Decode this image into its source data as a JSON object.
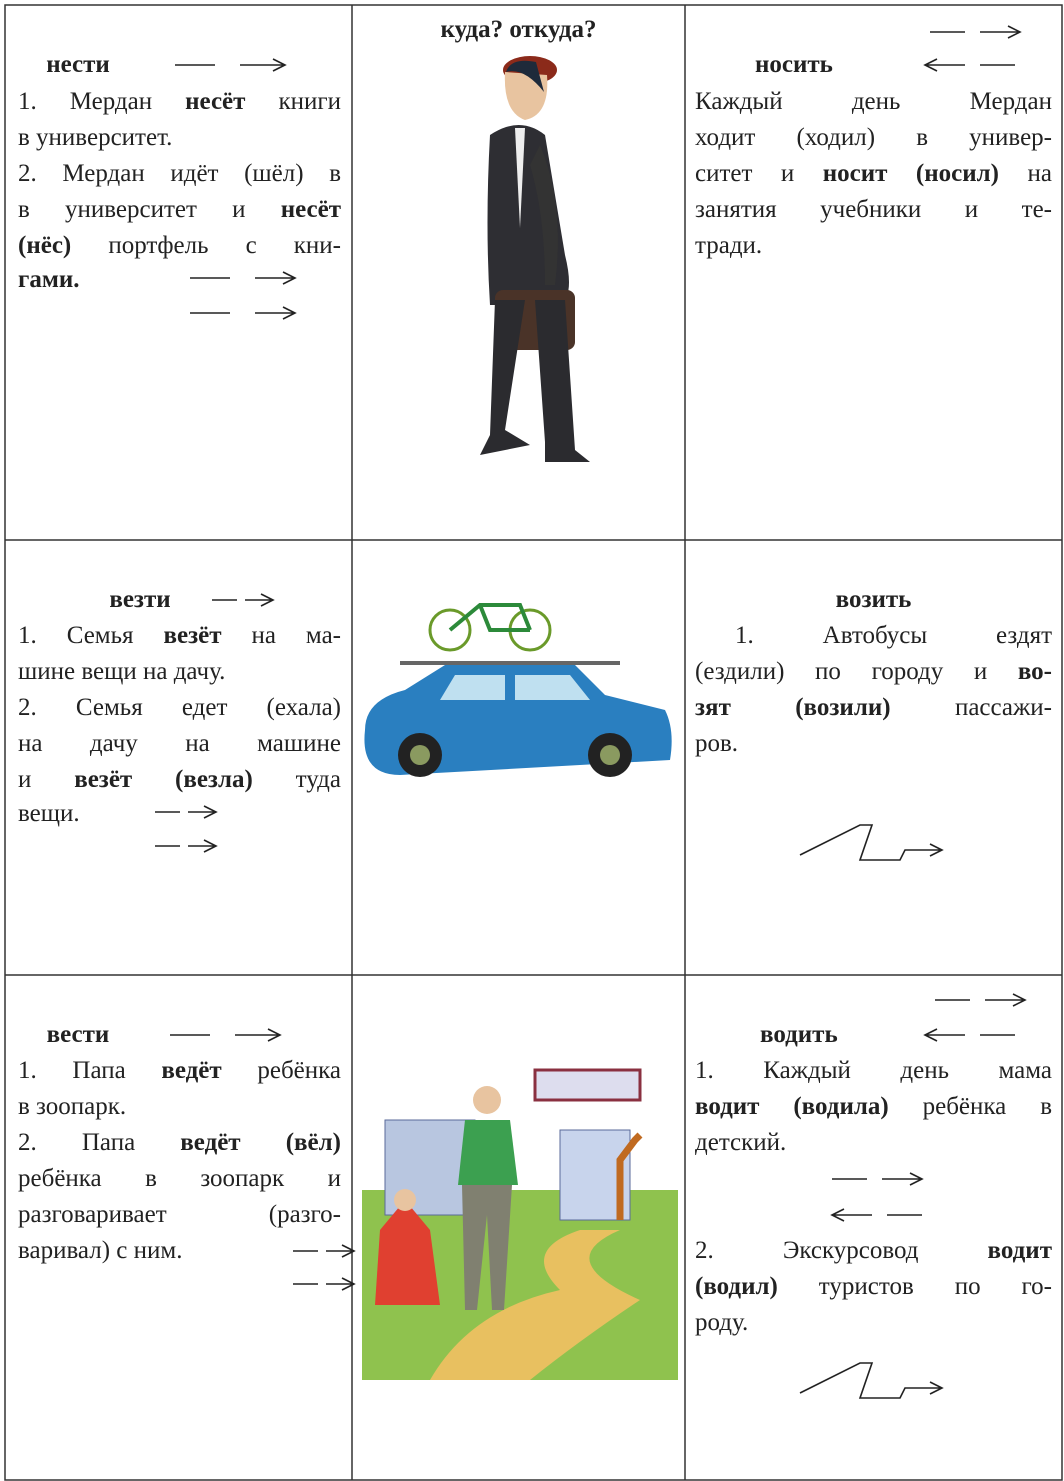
{
  "rows": [
    {
      "left": {
        "heading": "нести",
        "lines": [
          [
            "1. Мердан ",
            "несёт",
            " книги"
          ],
          [
            "в университет."
          ],
          [
            "2. Мердан идёт (шёл) в"
          ],
          [
            "в университет и ",
            "несёт"
          ],
          [
            "(нёс)",
            " портфель с кни-"
          ],
          [
            "гами."
          ]
        ]
      },
      "middle": {
        "heading": "куда? откуда?"
      },
      "right": {
        "heading": "носить",
        "lines": [
          [
            "Каждый день Мердан"
          ],
          [
            "ходит (ходил) в универ-"
          ],
          [
            "ситет и ",
            "носит (носил)",
            " на"
          ],
          [
            "занятия учебники и те-"
          ],
          [
            "тради."
          ]
        ]
      }
    },
    {
      "left": {
        "heading": "везти",
        "lines": [
          [
            "1. Семья ",
            "везёт",
            " на ма-"
          ],
          [
            "шине вещи на дачу."
          ],
          [
            "2. Семья едет (ехала)"
          ],
          [
            "на дачу на машине"
          ],
          [
            "и ",
            "везёт (везла)",
            " туда"
          ],
          [
            "вещи."
          ]
        ]
      },
      "right": {
        "heading": "возить",
        "lines": [
          [
            "1. Автобусы ездят"
          ],
          [
            "(ездили) по городу и ",
            "во-"
          ],
          [
            "зят (возили)",
            " пассажи-"
          ],
          [
            "ров."
          ]
        ]
      }
    },
    {
      "left": {
        "heading": "вести",
        "lines": [
          [
            "1. Папа ",
            "ведёт",
            " ребёнка"
          ],
          [
            "в зоопарк."
          ],
          [
            "2. Папа ",
            "ведёт (вёл)"
          ],
          [
            "ребёнка в зоопарк и"
          ],
          [
            "разговаривает (разго-"
          ],
          [
            "варивал) с ним."
          ]
        ]
      },
      "right": {
        "heading": "водить",
        "lines": [
          [
            "1. Каждый день мама"
          ],
          [
            "водит (водила)",
            " ребёнка в"
          ],
          [
            "детский."
          ],
          [
            "2. Экскурсовод ",
            "водит"
          ],
          [
            "(водил)",
            " туристов по го-"
          ],
          [
            "роду."
          ]
        ]
      }
    }
  ]
}
